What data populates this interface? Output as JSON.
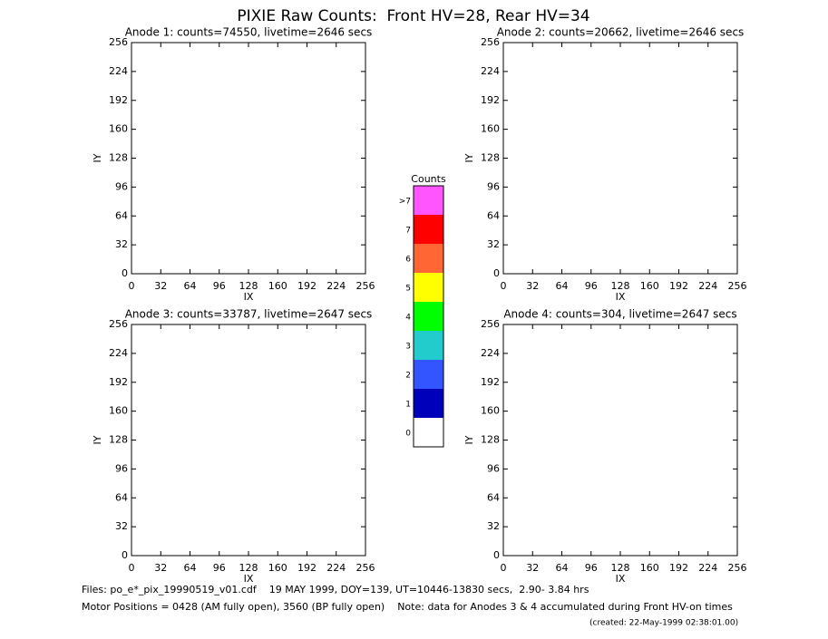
{
  "title": "PIXIE Raw Counts:  Front HV=28, Rear HV=34",
  "chart_data": [
    {
      "type": "heatmap",
      "title": "Anode 1: counts=74550, livetime=2646 secs",
      "xlabel": "IX",
      "ylabel": "IY",
      "xlim": [
        0,
        256
      ],
      "ylim": [
        0,
        256
      ],
      "xticks": [
        0,
        32,
        64,
        96,
        128,
        160,
        192,
        224,
        256
      ],
      "yticks": [
        0,
        32,
        64,
        96,
        128,
        160,
        192,
        224,
        256
      ]
    },
    {
      "type": "heatmap",
      "title": "Anode 2: counts=20662, livetime=2646 secs",
      "xlabel": "IX",
      "ylabel": "IY",
      "xlim": [
        0,
        256
      ],
      "ylim": [
        0,
        256
      ],
      "xticks": [
        0,
        32,
        64,
        96,
        128,
        160,
        192,
        224,
        256
      ],
      "yticks": [
        0,
        32,
        64,
        96,
        128,
        160,
        192,
        224,
        256
      ]
    },
    {
      "type": "heatmap",
      "title": "Anode 3: counts=33787, livetime=2647 secs",
      "xlabel": "IX",
      "ylabel": "IY",
      "xlim": [
        0,
        256
      ],
      "ylim": [
        0,
        256
      ],
      "xticks": [
        0,
        32,
        64,
        96,
        128,
        160,
        192,
        224,
        256
      ],
      "yticks": [
        0,
        32,
        64,
        96,
        128,
        160,
        192,
        224,
        256
      ]
    },
    {
      "type": "heatmap",
      "title": "Anode 4: counts=304, livetime=2647 secs",
      "xlabel": "IX",
      "ylabel": "IY",
      "xlim": [
        0,
        256
      ],
      "ylim": [
        0,
        256
      ],
      "xticks": [
        0,
        32,
        64,
        96,
        128,
        160,
        192,
        224,
        256
      ],
      "yticks": [
        0,
        32,
        64,
        96,
        128,
        160,
        192,
        224,
        256
      ]
    }
  ],
  "colorbar": {
    "title": "Counts",
    "levels": [
      0,
      1,
      2,
      3,
      4,
      5,
      6,
      7,
      ">7"
    ],
    "colors": [
      "#ffffff",
      "#0000bb",
      "#3355ff",
      "#22cccc",
      "#00ff00",
      "#ffff00",
      "#ff6633",
      "#ff0000",
      "#ff55ff"
    ]
  },
  "footer": {
    "files": "Files: po_e*_pix_19990519_v01.cdf    19 MAY 1999, DOY=139, UT=10446-13830 secs,  2.90- 3.84 hrs",
    "motor": "Motor Positions = 0428 (AM fully open), 3560 (BP fully open)    Note: data for Anodes 3 & 4 accumulated during Front HV-on times",
    "created": "(created: 22-May-1999 02:38:01.00)"
  }
}
